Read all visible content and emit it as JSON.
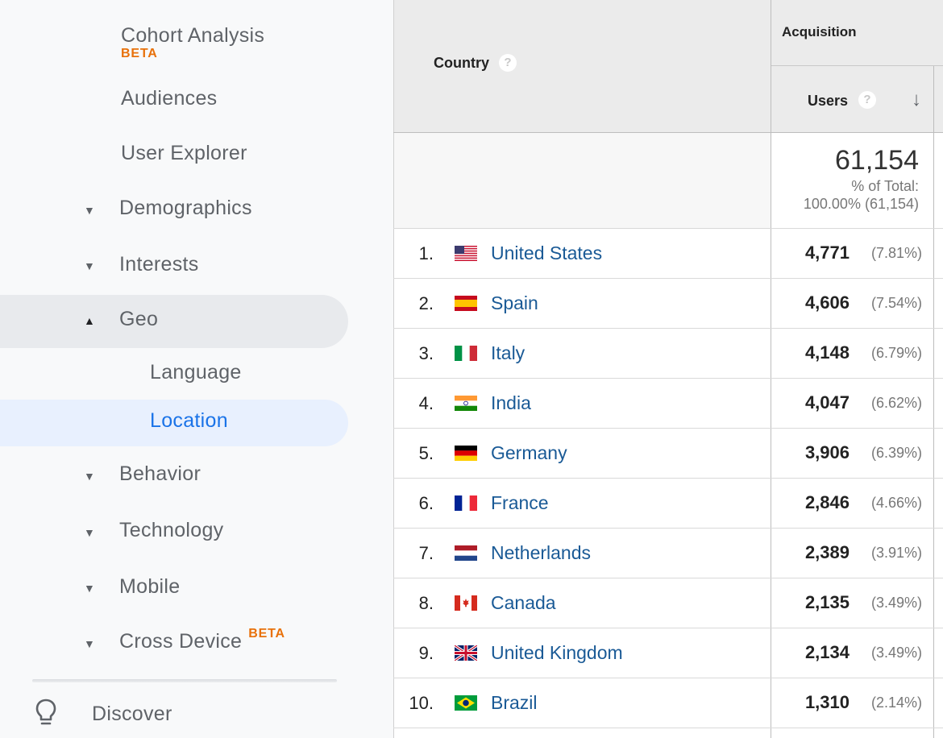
{
  "sidebar": {
    "cohort_analysis": "Cohort Analysis",
    "cohort_beta": "BETA",
    "audiences": "Audiences",
    "user_explorer": "User Explorer",
    "demographics": "Demographics",
    "interests": "Interests",
    "geo": "Geo",
    "language": "Language",
    "location": "Location",
    "behavior": "Behavior",
    "technology": "Technology",
    "mobile": "Mobile",
    "cross_device": "Cross Device",
    "cross_device_beta": "BETA",
    "discover": "Discover",
    "caret_collapsed": "▼",
    "caret_expanded": "▲"
  },
  "table": {
    "country_header": "Country",
    "acquisition_header": "Acquisition",
    "users_header": "Users",
    "help_glyph": "?",
    "sort_glyph": "↓",
    "total_value": "61,154",
    "total_pct_label": "% of Total:",
    "total_pct_value": "100.00% (61,154)",
    "rows": [
      {
        "rank": "1.",
        "country": "United States",
        "users": "4,771",
        "pct": "(7.81%)",
        "flag": "us"
      },
      {
        "rank": "2.",
        "country": "Spain",
        "users": "4,606",
        "pct": "(7.54%)",
        "flag": "es"
      },
      {
        "rank": "3.",
        "country": "Italy",
        "users": "4,148",
        "pct": "(6.79%)",
        "flag": "it"
      },
      {
        "rank": "4.",
        "country": "India",
        "users": "4,047",
        "pct": "(6.62%)",
        "flag": "in"
      },
      {
        "rank": "5.",
        "country": "Germany",
        "users": "3,906",
        "pct": "(6.39%)",
        "flag": "de"
      },
      {
        "rank": "6.",
        "country": "France",
        "users": "2,846",
        "pct": "(4.66%)",
        "flag": "fr"
      },
      {
        "rank": "7.",
        "country": "Netherlands",
        "users": "2,389",
        "pct": "(3.91%)",
        "flag": "nl"
      },
      {
        "rank": "8.",
        "country": "Canada",
        "users": "2,135",
        "pct": "(3.49%)",
        "flag": "ca"
      },
      {
        "rank": "9.",
        "country": "United Kingdom",
        "users": "2,134",
        "pct": "(3.49%)",
        "flag": "gb"
      },
      {
        "rank": "10.",
        "country": "Brazil",
        "users": "1,310",
        "pct": "(2.14%)",
        "flag": "br"
      }
    ]
  },
  "colors": {
    "link": "#1a5a96",
    "active": "#1a73e8",
    "beta": "#e8710a"
  }
}
